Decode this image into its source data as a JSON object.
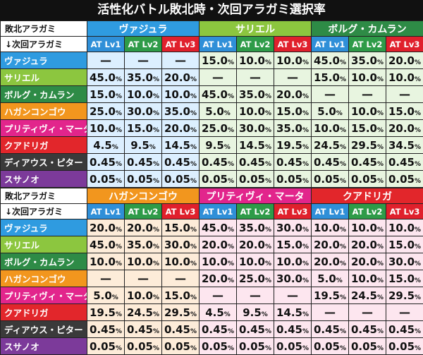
{
  "title": "活性化バトル敗北時・次回アラガミ選択率",
  "header_labels": {
    "defeated": "敗北アラガミ",
    "next": "↓次回アラガミ"
  },
  "lv_labels": [
    "AT Lv1",
    "AT Lv2",
    "AT Lv3"
  ],
  "colors": {
    "lv1": "#2f8fd8",
    "lv2": "#2e9b48",
    "lv3": "#e0202c",
    "vajura": "#2f9be0",
    "sariel": "#8cc63f",
    "borg": "#2e8b46",
    "hagan": "#f2961e",
    "pretty": "#e2258c",
    "kuado": "#e2262b",
    "dius": "#3a3a3a",
    "susano": "#7c3a9a",
    "tint_blue": "#dcefff",
    "tint_green": "#e8f5e0",
    "tint_pink": "#fde6ef",
    "tint_orange": "#fdecd9"
  },
  "sections": [
    {
      "groups": [
        "ヴァジュラ",
        "サリエル",
        "ボルグ・カムラン"
      ],
      "rows": [
        {
          "label": "ヴァジュラ",
          "cells": [
            "—",
            "—",
            "—",
            "15.0",
            "10.0",
            "10.0",
            "45.0",
            "35.0",
            "20.0"
          ]
        },
        {
          "label": "サリエル",
          "cells": [
            "45.0",
            "35.0",
            "20.0",
            "—",
            "—",
            "—",
            "15.0",
            "10.0",
            "10.0"
          ]
        },
        {
          "label": "ボルグ・カムラン",
          "cells": [
            "15.0",
            "10.0",
            "10.0",
            "45.0",
            "35.0",
            "20.0",
            "—",
            "—",
            "—"
          ]
        },
        {
          "label": "ハガンコンゴウ",
          "cells": [
            "25.0",
            "30.0",
            "35.0",
            "5.0",
            "10.0",
            "15.0",
            "5.0",
            "10.0",
            "15.0"
          ]
        },
        {
          "label": "プリティヴィ・マータ",
          "cells": [
            "10.0",
            "15.0",
            "20.0",
            "25.0",
            "30.0",
            "35.0",
            "10.0",
            "15.0",
            "20.0"
          ]
        },
        {
          "label": "クアドリガ",
          "cells": [
            "4.5",
            "9.5",
            "14.5",
            "9.5",
            "14.5",
            "19.5",
            "24.5",
            "29.5",
            "34.5"
          ]
        },
        {
          "label": "ディアウス・ピター",
          "cells": [
            "0.45",
            "0.45",
            "0.45",
            "0.45",
            "0.45",
            "0.45",
            "0.45",
            "0.45",
            "0.45"
          ]
        },
        {
          "label": "スサノオ",
          "cells": [
            "0.05",
            "0.05",
            "0.05",
            "0.05",
            "0.05",
            "0.05",
            "0.05",
            "0.05",
            "0.05"
          ]
        }
      ]
    },
    {
      "groups": [
        "ハガンコンゴウ",
        "プリティヴィ・マータ",
        "クアドリガ"
      ],
      "rows": [
        {
          "label": "ヴァジュラ",
          "cells": [
            "20.0",
            "20.0",
            "15.0",
            "45.0",
            "35.0",
            "30.0",
            "10.0",
            "10.0",
            "10.0"
          ]
        },
        {
          "label": "サリエル",
          "cells": [
            "45.0",
            "35.0",
            "30.0",
            "20.0",
            "20.0",
            "15.0",
            "20.0",
            "20.0",
            "15.0"
          ]
        },
        {
          "label": "ボルグ・カムラン",
          "cells": [
            "10.0",
            "10.0",
            "10.0",
            "10.0",
            "10.0",
            "10.0",
            "20.0",
            "20.0",
            "30.0"
          ]
        },
        {
          "label": "ハガンコンゴウ",
          "cells": [
            "—",
            "—",
            "—",
            "20.0",
            "25.0",
            "30.0",
            "5.0",
            "10.0",
            "15.0"
          ]
        },
        {
          "label": "プリティヴィ・マータ",
          "cells": [
            "5.0",
            "10.0",
            "15.0",
            "—",
            "—",
            "—",
            "19.5",
            "24.5",
            "29.5"
          ]
        },
        {
          "label": "クアドリガ",
          "cells": [
            "19.5",
            "24.5",
            "29.5",
            "4.5",
            "9.5",
            "14.5",
            "—",
            "—",
            "—"
          ]
        },
        {
          "label": "ディアウス・ピター",
          "cells": [
            "0.45",
            "0.45",
            "0.45",
            "0.45",
            "0.45",
            "0.45",
            "0.45",
            "0.45",
            "0.45"
          ]
        },
        {
          "label": "スサノオ",
          "cells": [
            "0.05",
            "0.05",
            "0.05",
            "0.05",
            "0.05",
            "0.05",
            "0.05",
            "0.05",
            "0.05"
          ]
        }
      ]
    }
  ]
}
